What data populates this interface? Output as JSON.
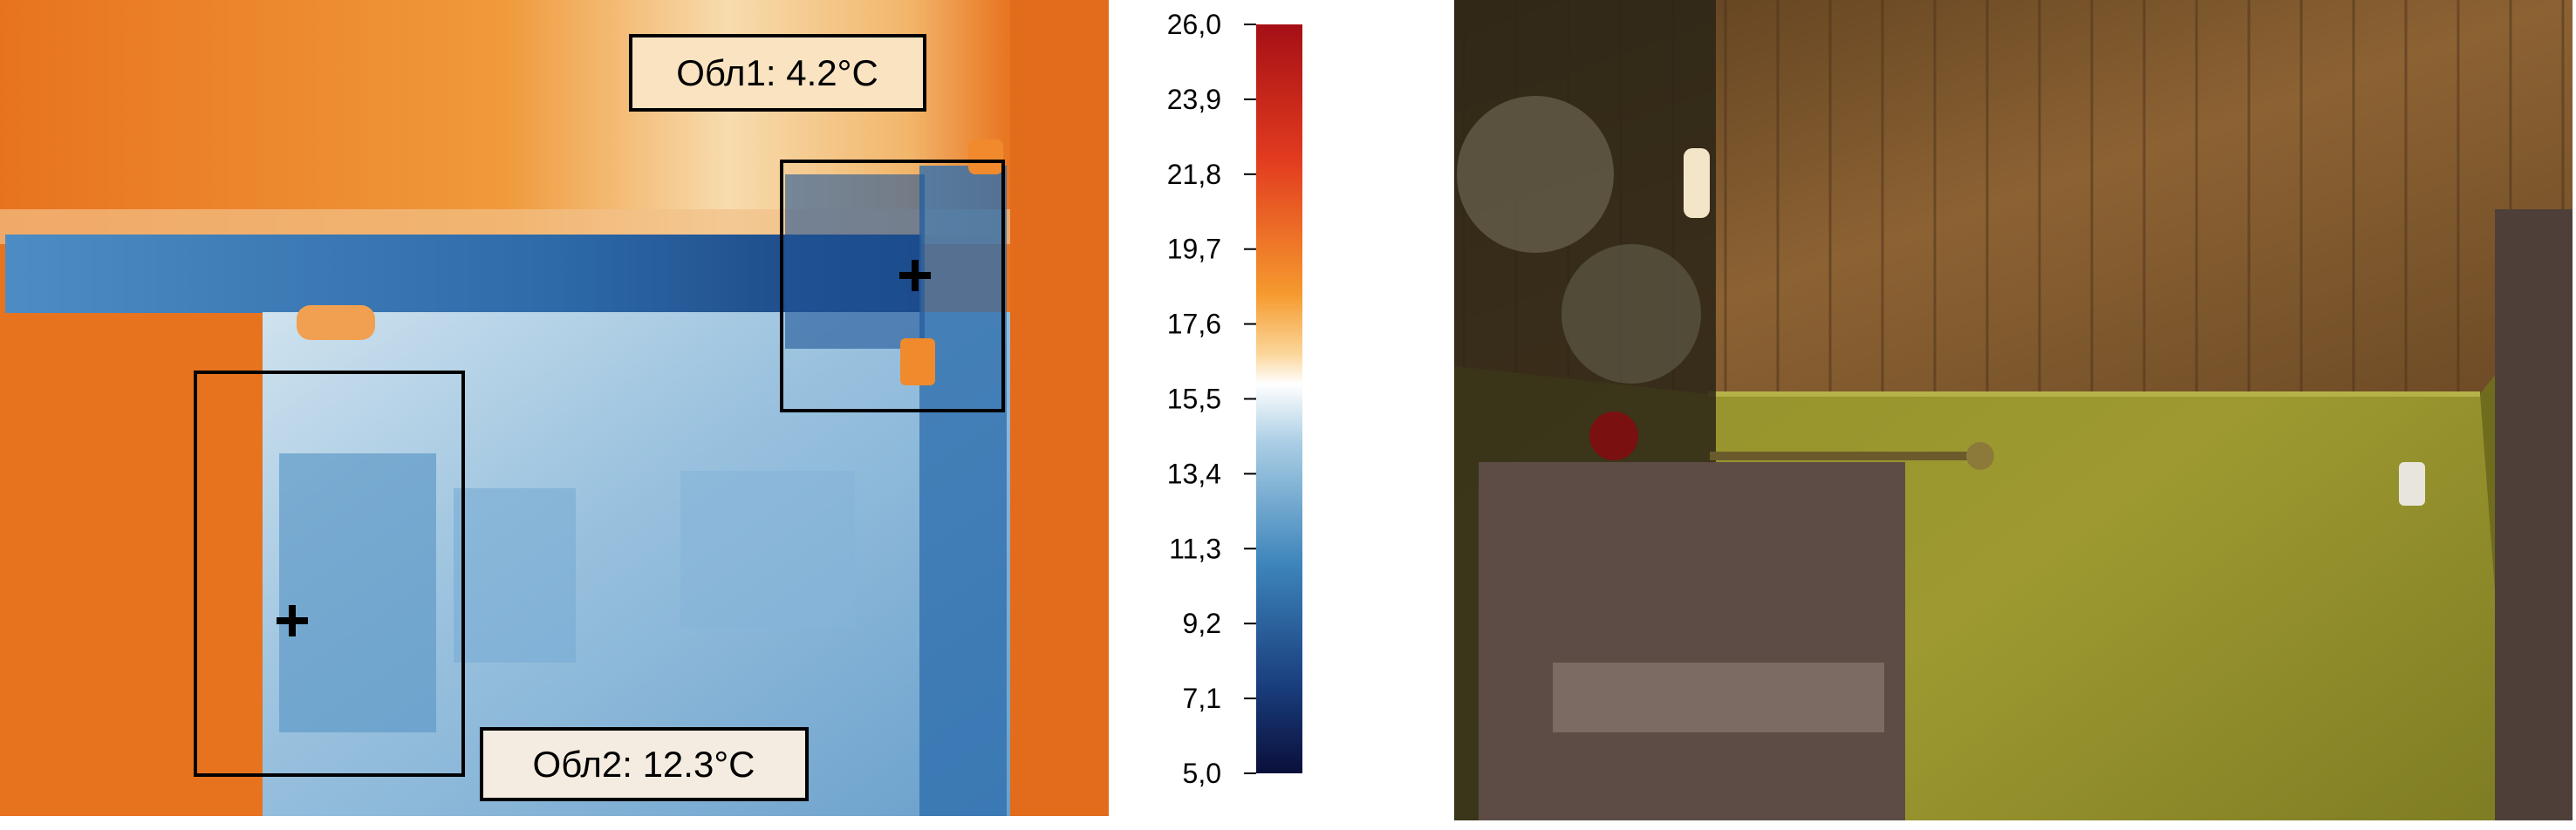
{
  "thermogram": {
    "areas": [
      {
        "label": "Обл1: 4.2°C"
      },
      {
        "label": "Обл2: 12.3°C"
      }
    ]
  },
  "color_scale": {
    "ticks": [
      "26,0",
      "23,9",
      "21,8",
      "19,7",
      "17,6",
      "15,5",
      "13,4",
      "11,3",
      "9,2",
      "7,1",
      "5,0"
    ]
  }
}
